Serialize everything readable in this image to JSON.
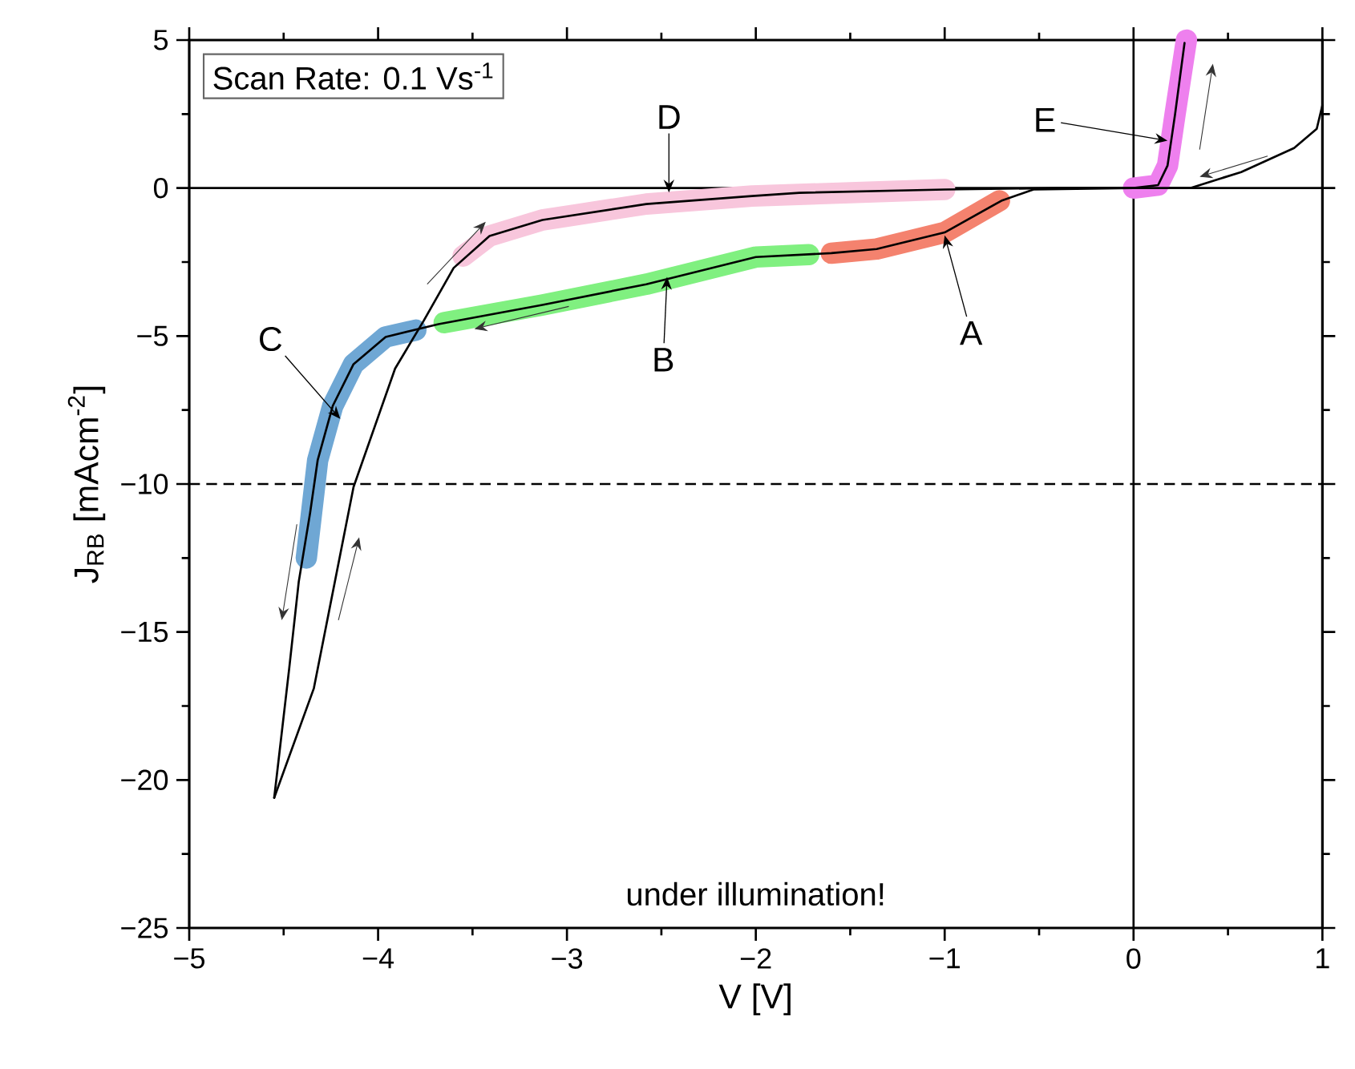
{
  "chart_data": {
    "type": "line",
    "xlabel": "V [V]",
    "ylabel": "J$_{RB}$ [mAcm$^{-2}$]",
    "xlim": [
      -5,
      1
    ],
    "ylim": [
      -25,
      5
    ],
    "xticks": [
      {
        "value": -5,
        "label": "−5"
      },
      {
        "value": -4,
        "label": "−4"
      },
      {
        "value": -3,
        "label": "−3"
      },
      {
        "value": -2,
        "label": "−2"
      },
      {
        "value": -1,
        "label": "−1"
      },
      0,
      1
    ],
    "yticks": [
      {
        "value": -25,
        "label": "−25"
      },
      {
        "value": -20,
        "label": "−20"
      },
      {
        "value": -15,
        "label": "−15"
      },
      {
        "value": -10,
        "label": "−10"
      },
      {
        "value": -5,
        "label": "−5"
      },
      0,
      5
    ],
    "series": [
      {
        "color": "#f4826e",
        "x": [
          -1.6,
          -1.36,
          -1.0,
          -0.71
        ],
        "values": [
          -2.2,
          -2.06,
          -1.5,
          -0.43
        ]
      },
      {
        "color": "#80f080",
        "x": [
          -3.65,
          -3.13,
          -2.58,
          -2.0,
          -1.72
        ],
        "values": [
          -4.55,
          -3.95,
          -3.25,
          -2.33,
          -2.25
        ]
      },
      {
        "color": "#6fa7d4",
        "x": [
          -4.38,
          -4.32,
          -4.24,
          -4.13,
          -3.96,
          -3.8
        ],
        "values": [
          -12.5,
          -9.2,
          -7.36,
          -5.95,
          -5.03,
          -4.8
        ]
      },
      {
        "color": "#f8c6dc",
        "x": [
          -3.55,
          -3.41,
          -3.13,
          -2.58,
          -2.02,
          -1.0
        ],
        "values": [
          -2.3,
          -1.62,
          -1.08,
          -0.54,
          -0.27,
          -0.05
        ]
      },
      {
        "color": "#ee80ee",
        "x": [
          0,
          0.13,
          0.18,
          0.22,
          0.28
        ],
        "values": [
          0,
          0.1,
          0.76,
          2.5,
          5
        ]
      },
      {
        "color": "#000000",
        "x": [
          1,
          0.97,
          0.85,
          0.57,
          0.3,
          0,
          -0.53,
          -0.7,
          -1.0,
          -1.36,
          -1.6,
          -2.0,
          -2.58,
          -3.13,
          -3.68,
          -3.96,
          -4.13,
          -4.24,
          -4.32,
          -4.36,
          -4.42,
          -4.47,
          -4.55
        ],
        "values": [
          2.8,
          2.0,
          1.35,
          0.54,
          0,
          0,
          -0.05,
          -0.43,
          -1.5,
          -2.06,
          -2.2,
          -2.33,
          -3.25,
          -3.95,
          -4.6,
          -5.03,
          -5.95,
          -7.36,
          -9.2,
          -10.98,
          -13.3,
          -16.2,
          -20.6
        ]
      },
      {
        "color": "#000000",
        "x": [
          -4.55,
          -4.34,
          -4.13,
          -3.91,
          -3.76,
          -3.6,
          -3.41,
          -3.13,
          -2.58,
          -2.02,
          -1.77,
          -1.0,
          -0.4,
          0,
          0.13,
          0.18,
          0.22,
          0.27
        ],
        "values": [
          -20.6,
          -16.9,
          -10.1,
          -6.1,
          -4.5,
          -2.7,
          -1.62,
          -1.08,
          -0.54,
          -0.27,
          -0.16,
          -0.05,
          0,
          0,
          0.1,
          0.76,
          2.5,
          4.9
        ]
      }
    ],
    "ref_lines": [
      {
        "axis": "y",
        "value": 0,
        "color": "#000000",
        "line_style": "solid"
      },
      {
        "axis": "y",
        "value": -10,
        "color": "#000000",
        "line_style": "dashed"
      },
      {
        "axis": "x",
        "value": 0,
        "color": "#000000",
        "line_style": "solid"
      }
    ],
    "annotations": [
      "Scan Rate: 0.1 Vs$^{-1}$",
      "under illumination!",
      {
        "text": "A",
        "x": -1.0,
        "y": -1.6
      },
      {
        "text": "B",
        "x": -2.47,
        "y": -3.0
      },
      {
        "text": "C",
        "x": -4.2,
        "y": -7.8
      },
      {
        "text": "D",
        "x": -2.46,
        "y": -0.15
      },
      {
        "text": "E",
        "x": 0.18,
        "y": 1.6
      }
    ]
  }
}
